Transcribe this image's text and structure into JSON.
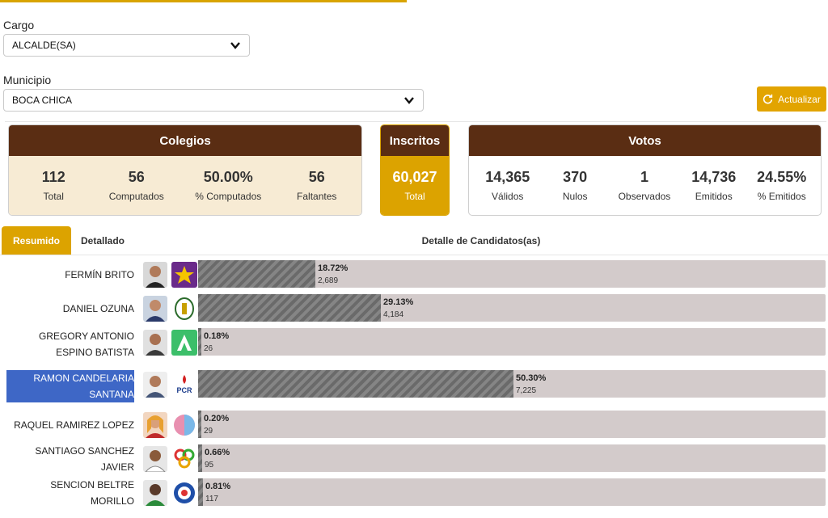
{
  "filters": {
    "cargo_label": "Cargo",
    "cargo_value": "ALCALDE(SA)",
    "municipio_label": "Municipio",
    "municipio_value": "BOCA CHICA",
    "refresh_label": "Actualizar"
  },
  "colegios": {
    "title": "Colegios",
    "stats": [
      {
        "value": "112",
        "label": "Total"
      },
      {
        "value": "56",
        "label": "Computados"
      },
      {
        "value": "50.00%",
        "label": "% Computados"
      },
      {
        "value": "56",
        "label": "Faltantes"
      }
    ]
  },
  "inscritos": {
    "title": "Inscritos",
    "value": "60,027",
    "label": "Total"
  },
  "votos": {
    "title": "Votos",
    "stats": [
      {
        "value": "14,365",
        "label": "Válidos"
      },
      {
        "value": "370",
        "label": "Nulos"
      },
      {
        "value": "1",
        "label": "Observados"
      },
      {
        "value": "14,736",
        "label": "Emitidos"
      },
      {
        "value": "24.55%",
        "label": "% Emitidos"
      }
    ]
  },
  "tabs": {
    "resumido": "Resumido",
    "detallado": "Detallado",
    "title": "Detalle de Candidatos(as)"
  },
  "colors": {
    "brown": "#5a2d13",
    "gold": "#dca300",
    "cream": "#f7ebd4",
    "bar_bg": "#d3cbcb",
    "highlight": "#3e67c6"
  },
  "candidates": [
    {
      "name": "FERMÍN BRITO",
      "pct": "18.72%",
      "votes": "2,689",
      "fraction": 0.1872,
      "party_icon": "purple-star-logo",
      "highlighted": false
    },
    {
      "name": "DANIEL OZUNA",
      "pct": "29.13%",
      "votes": "4,184",
      "fraction": 0.2913,
      "party_icon": "dominican-seal-logo",
      "highlighted": false
    },
    {
      "name": "GREGORY ANTONIO ESPINO BATISTA",
      "pct": "0.18%",
      "votes": "26",
      "fraction": 0.0018,
      "party_icon": "green-a-logo",
      "highlighted": false
    },
    {
      "name": "RAMON CANDELARIA SANTANA",
      "pct": "50.30%",
      "votes": "7,225",
      "fraction": 0.503,
      "party_icon": "pcr-logo",
      "highlighted": true
    },
    {
      "name": "RAQUEL RAMIREZ LOPEZ",
      "pct": "0.20%",
      "votes": "29",
      "fraction": 0.002,
      "party_icon": "blue-pink-circle-logo",
      "highlighted": false
    },
    {
      "name": "SANTIAGO SANCHEZ JAVIER",
      "pct": "0.66%",
      "votes": "95",
      "fraction": 0.0066,
      "party_icon": "colored-rings-logo",
      "highlighted": false
    },
    {
      "name": "SENCION BELTRE MORILLO",
      "pct": "0.81%",
      "votes": "117",
      "fraction": 0.0081,
      "party_icon": "blue-seal-logo",
      "highlighted": false
    }
  ]
}
